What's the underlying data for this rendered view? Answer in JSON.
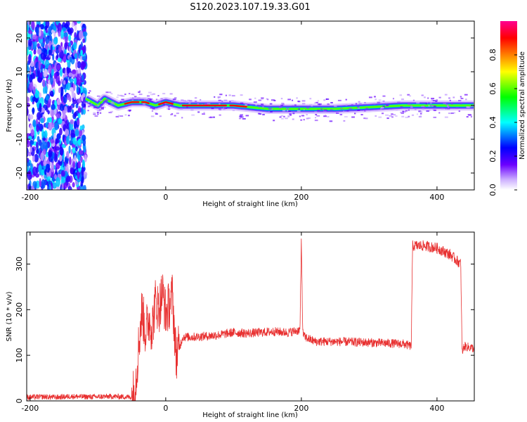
{
  "title": "S120.2023.107.19.33.G01",
  "chart_data": [
    {
      "type": "heatmap",
      "xlabel": "Height of straight line (km)",
      "ylabel": "Frequency (Hz)",
      "xlim": [
        -205,
        455
      ],
      "ylim": [
        -25,
        25
      ],
      "xticks": [
        -200,
        0,
        200,
        400
      ],
      "yticks": [
        -20,
        -10,
        0,
        10,
        20
      ],
      "colorbar": {
        "label": "Normalized spectral amplitude",
        "range": [
          0,
          1
        ],
        "ticks": [
          "0.0",
          "0.2",
          "0.4",
          "0.6",
          "0.8"
        ],
        "colors": [
          "#ffffff",
          "#7a00ff",
          "#0000ff",
          "#00ffff",
          "#00ff00",
          "#ffff00",
          "#ff8000",
          "#ff0000",
          "#ff0090"
        ]
      },
      "regions": [
        {
          "x_range": [
            -205,
            -118
          ],
          "description": "broadband noise",
          "level": 0.3
        },
        {
          "x_range": [
            -118,
            455
          ],
          "description": "narrow line near 0 Hz",
          "level": 0.8
        }
      ],
      "line_center_hz": [
        {
          "x": -118,
          "y": 2
        },
        {
          "x": -100,
          "y": 0
        },
        {
          "x": -90,
          "y": 2
        },
        {
          "x": -70,
          "y": 0
        },
        {
          "x": -50,
          "y": 1
        },
        {
          "x": -30,
          "y": 1
        },
        {
          "x": -15,
          "y": 0
        },
        {
          "x": 0,
          "y": 1
        },
        {
          "x": 20,
          "y": 0
        },
        {
          "x": 100,
          "y": 0
        },
        {
          "x": 150,
          "y": -1
        },
        {
          "x": 250,
          "y": -1
        },
        {
          "x": 350,
          "y": 0
        },
        {
          "x": 455,
          "y": 0
        }
      ]
    },
    {
      "type": "line",
      "xlabel": "Height of straight line (km)",
      "ylabel": "SNR (10 * v/v)",
      "xlim": [
        -205,
        455
      ],
      "ylim": [
        0,
        370
      ],
      "xticks": [
        -200,
        0,
        200,
        400
      ],
      "yticks": [
        0,
        100,
        200,
        300
      ],
      "color": "#e83030",
      "series": [
        {
          "x": [
            -205,
            -180,
            -160,
            -140,
            -120,
            -100,
            -80,
            -60,
            -50,
            -45,
            -40,
            -35,
            -30,
            -25,
            -20,
            -15,
            -10,
            -5,
            0,
            5,
            10,
            15,
            20,
            25,
            40,
            60,
            80,
            100,
            120,
            140,
            160,
            180,
            198,
            200,
            202,
            205,
            220,
            250,
            300,
            350,
            362,
            364,
            380,
            400,
            420,
            435,
            437,
            440,
            455
          ],
          "y": [
            8,
            9,
            8,
            10,
            9,
            9,
            10,
            9,
            8,
            30,
            120,
            200,
            150,
            180,
            160,
            220,
            200,
            240,
            190,
            210,
            230,
            100,
            115,
            140,
            140,
            142,
            145,
            150,
            148,
            150,
            152,
            150,
            155,
            355,
            150,
            140,
            130,
            130,
            128,
            125,
            120,
            340,
            340,
            335,
            320,
            300,
            105,
            120,
            115
          ]
        }
      ]
    }
  ]
}
